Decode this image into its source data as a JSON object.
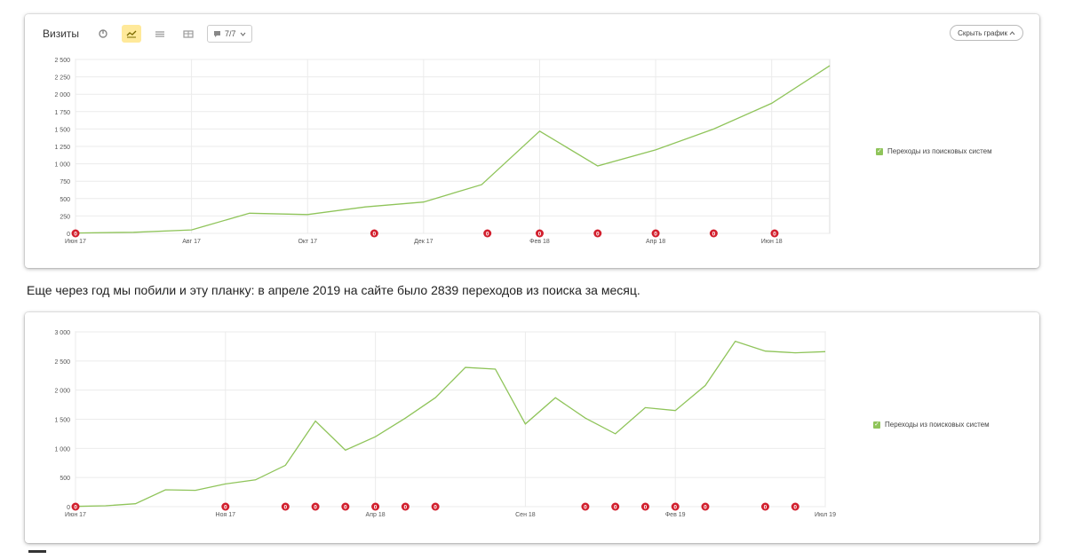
{
  "caption": "Еще через год мы побили и эту планку: в апреле 2019 на сайте было 2839 переходов из поиска за месяц.",
  "colors": {
    "line": "#8fc45a",
    "marker": "#d21f2d",
    "grid": "#ebebeb"
  },
  "chart1_ui": {
    "title": "Визиты",
    "segments_label": "7/7",
    "hide_label": "Скрыть график",
    "legend": "Переходы из поисковых систем",
    "icons": [
      "pie-icon",
      "line-chart-icon",
      "area-chart-icon",
      "bar-chart-icon",
      "comment-icon"
    ]
  },
  "chart2_ui": {
    "legend": "Переходы из поисковых систем"
  },
  "chart_data": [
    {
      "type": "line",
      "title": "",
      "xlabel": "",
      "ylabel": "",
      "ylim": [
        0,
        2500
      ],
      "yticks": [
        0,
        250,
        500,
        750,
        1000,
        1250,
        1500,
        1750,
        2000,
        2250,
        2500
      ],
      "ytick_labels": [
        "0",
        "250",
        "500",
        "750",
        "1 000",
        "1 250",
        "1 500",
        "1 750",
        "2 000",
        "2 250",
        "2 500"
      ],
      "xtick_labels": [
        {
          "index": 0,
          "label": "Июн 17"
        },
        {
          "index": 2,
          "label": "Авг 17"
        },
        {
          "index": 4,
          "label": "Окт 17"
        },
        {
          "index": 6,
          "label": "Дек 17"
        },
        {
          "index": 8,
          "label": "Фев 18"
        },
        {
          "index": 10,
          "label": "Апр 18"
        },
        {
          "index": 12,
          "label": "Июн 18"
        }
      ],
      "grid": true,
      "legend_position": "right",
      "series": [
        {
          "name": "Переходы из поисковых систем",
          "values": [
            5,
            15,
            50,
            290,
            270,
            380,
            450,
            700,
            1470,
            970,
            1200,
            1500,
            1870,
            2410
          ]
        }
      ],
      "markers": [
        {
          "index": 0,
          "label": "0"
        },
        {
          "index": 5.15,
          "label": "0"
        },
        {
          "index": 7.1,
          "label": "0"
        },
        {
          "index": 8,
          "label": "0"
        },
        {
          "index": 9,
          "label": "0"
        },
        {
          "index": 10,
          "label": "0"
        },
        {
          "index": 11,
          "label": "0"
        },
        {
          "index": 12.05,
          "label": "0"
        }
      ]
    },
    {
      "type": "line",
      "title": "",
      "xlabel": "",
      "ylabel": "",
      "ylim": [
        0,
        3000
      ],
      "yticks": [
        0,
        500,
        1000,
        1500,
        2000,
        2500,
        3000
      ],
      "ytick_labels": [
        "0",
        "500",
        "1 000",
        "1 500",
        "2 000",
        "2 500",
        "3 000"
      ],
      "xtick_labels": [
        {
          "index": 0,
          "label": "Июн 17"
        },
        {
          "index": 5,
          "label": "Ноя 17"
        },
        {
          "index": 10,
          "label": "Апр 18"
        },
        {
          "index": 15,
          "label": "Сен 18"
        },
        {
          "index": 20,
          "label": "Фев 19"
        },
        {
          "index": 25,
          "label": "Июл 19"
        }
      ],
      "grid": true,
      "legend_position": "right",
      "series": [
        {
          "name": "Переходы из поисковых систем",
          "values": [
            5,
            15,
            50,
            290,
            280,
            390,
            460,
            710,
            1470,
            970,
            1200,
            1520,
            1870,
            2390,
            2360,
            1420,
            1870,
            1520,
            1250,
            1700,
            1650,
            2080,
            2839,
            2670,
            2640,
            2660
          ]
        }
      ],
      "markers": [
        {
          "index": 0,
          "label": "0"
        },
        {
          "index": 5,
          "label": "0"
        },
        {
          "index": 7,
          "label": "0"
        },
        {
          "index": 8,
          "label": "0"
        },
        {
          "index": 9,
          "label": "0"
        },
        {
          "index": 10,
          "label": "0"
        },
        {
          "index": 11,
          "label": "0"
        },
        {
          "index": 12,
          "label": "0"
        },
        {
          "index": 17,
          "label": "0"
        },
        {
          "index": 18,
          "label": "0"
        },
        {
          "index": 19,
          "label": "0"
        },
        {
          "index": 20,
          "label": "0"
        },
        {
          "index": 21,
          "label": "0"
        },
        {
          "index": 23,
          "label": "0"
        },
        {
          "index": 24,
          "label": "0"
        }
      ]
    }
  ]
}
